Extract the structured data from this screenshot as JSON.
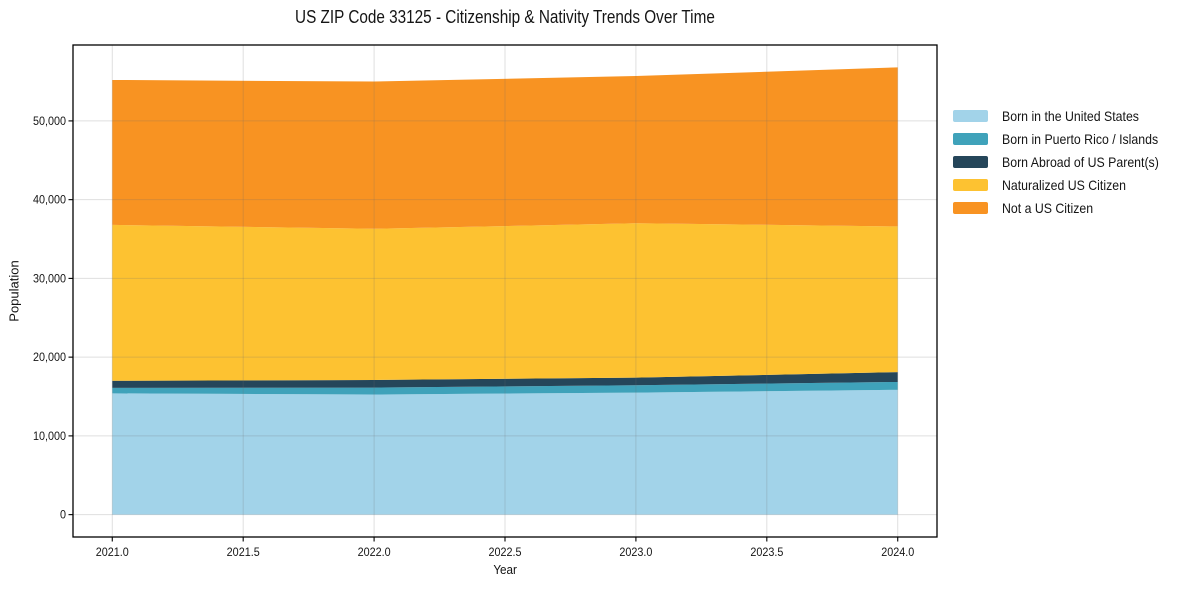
{
  "chart_data": {
    "type": "area",
    "stacked": true,
    "title": "US ZIP Code 33125 - Citizenship & Nativity Trends Over Time",
    "xlabel": "Year",
    "ylabel": "Population",
    "x": [
      2021,
      2022,
      2023,
      2024
    ],
    "series": [
      {
        "name": "Born in the United States",
        "color": "#a2d3e9",
        "values": [
          15400,
          15250,
          15500,
          15850
        ]
      },
      {
        "name": "Born in Puerto Rico / Islands",
        "color": "#3fa2ba",
        "values": [
          700,
          880,
          930,
          1000
        ]
      },
      {
        "name": "Born Abroad of US Parent(s)",
        "color": "#25465a",
        "values": [
          900,
          970,
          970,
          1250
        ]
      },
      {
        "name": "Naturalized US Citizen",
        "color": "#fdc231",
        "values": [
          19800,
          19200,
          19600,
          18500
        ]
      },
      {
        "name": "Not a US Citizen",
        "color": "#f89322",
        "values": [
          18400,
          18700,
          18700,
          20200
        ]
      }
    ],
    "totals": [
      55200,
      55000,
      55700,
      56800
    ],
    "xlim": [
      2020.85,
      2024.15
    ],
    "ylim": [
      -2840,
      59640
    ],
    "xticks": {
      "values": [
        2021.0,
        2021.5,
        2022.0,
        2022.5,
        2023.0,
        2023.5,
        2024.0
      ],
      "labels": [
        "2021.0",
        "2021.5",
        "2022.0",
        "2022.5",
        "2023.0",
        "2023.5",
        "2024.0"
      ]
    },
    "yticks": {
      "values": [
        0,
        10000,
        20000,
        30000,
        40000,
        50000
      ],
      "labels": [
        "0",
        "10,000",
        "20,000",
        "30,000",
        "40,000",
        "50,000"
      ]
    },
    "grid": true,
    "legend_position": "right-outside"
  },
  "colors": {
    "spine": "#000000",
    "grid_overlay": "rgba(110,110,110,0.22)",
    "tick": "#000000",
    "text": "#151515",
    "background": "#ffffff"
  }
}
